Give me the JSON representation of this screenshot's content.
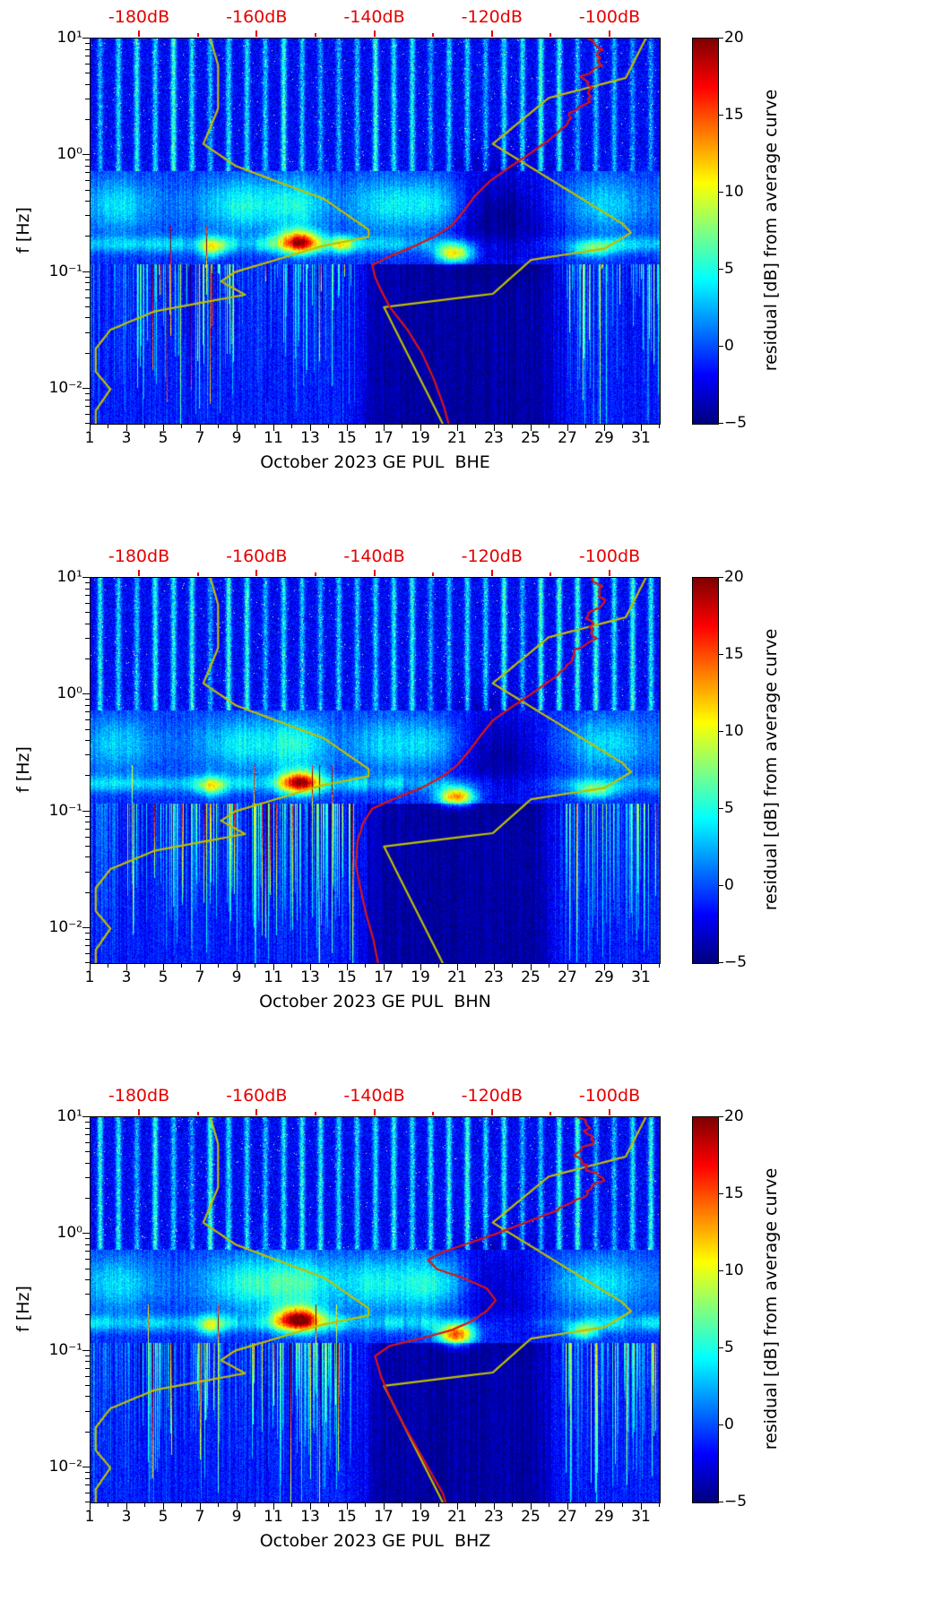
{
  "chart_data": {
    "type": "heatmap",
    "x": {
      "range_days": [
        1,
        32
      ],
      "tick_labels": [
        "1",
        "3",
        "5",
        "7",
        "9",
        "11",
        "13",
        "15",
        "17",
        "19",
        "21",
        "23",
        "25",
        "27",
        "29",
        "31"
      ]
    },
    "y": {
      "label": "f [Hz]",
      "scale": "log",
      "range_hz": [
        0.005,
        10
      ],
      "ticks": [
        {
          "f": 10,
          "label": "10¹"
        },
        {
          "f": 1,
          "label": "10⁰"
        },
        {
          "f": 0.1,
          "label": "10⁻¹"
        },
        {
          "f": 0.01,
          "label": "10⁻²"
        }
      ]
    },
    "top_axis": {
      "color": "#e60000",
      "range_db": [
        -188.4,
        -91.6
      ],
      "ticks": [
        {
          "value": -180,
          "label": "-180dB"
        },
        {
          "value": -160,
          "label": "-160dB"
        },
        {
          "value": -140,
          "label": "-140dB"
        },
        {
          "value": -120,
          "label": "-120dB"
        },
        {
          "value": -100,
          "label": "-100dB"
        }
      ]
    },
    "colorbar": {
      "label": "residual [dB] from average curve",
      "range": [
        -5,
        20
      ],
      "colormap": "jet",
      "ticks": [
        {
          "value": 20,
          "label": "20"
        },
        {
          "value": 15,
          "label": "15"
        },
        {
          "value": 10,
          "label": "10"
        },
        {
          "value": 5,
          "label": "5"
        },
        {
          "value": 0,
          "label": "0"
        },
        {
          "value": -5,
          "label": "−5"
        }
      ]
    },
    "colors": {
      "model_curve": "#bfbf00",
      "median_curve": "#dc1414",
      "heatmap_low": "#00007f",
      "heatmap_high": "#7f0000"
    },
    "model_curves": {
      "nlnm": [
        [
          10,
          -168.0
        ],
        [
          5.9,
          -166.7
        ],
        [
          2.5,
          -166.7
        ],
        [
          1.25,
          -169.2
        ],
        [
          0.81,
          -163.7
        ],
        [
          0.42,
          -148.6
        ],
        [
          0.23,
          -141.1
        ],
        [
          0.2,
          -141.1
        ],
        [
          0.167,
          -149.0
        ],
        [
          0.1,
          -163.8
        ],
        [
          0.083,
          -166.2
        ],
        [
          0.064,
          -162.1
        ],
        [
          0.046,
          -177.5
        ],
        [
          0.032,
          -185.0
        ],
        [
          0.022,
          -187.5
        ],
        [
          0.014,
          -187.5
        ],
        [
          0.0099,
          -185.0
        ],
        [
          0.0065,
          -187.5
        ],
        [
          0.005,
          -187.5
        ]
      ],
      "nhnm": [
        [
          10,
          -94.0
        ],
        [
          4.6,
          -97.4
        ],
        [
          3.1,
          -110.5
        ],
        [
          1.25,
          -120.0
        ],
        [
          0.26,
          -98.0
        ],
        [
          0.217,
          -96.5
        ],
        [
          0.159,
          -101.0
        ],
        [
          0.127,
          -113.5
        ],
        [
          0.065,
          -120.0
        ],
        [
          0.05,
          -138.5
        ],
        [
          0.005,
          -128.5
        ]
      ]
    },
    "panels": [
      {
        "channel": "BHE",
        "title": "October 2023 GE PUL  BHE",
        "median_curve": [
          [
            10,
            -103
          ],
          [
            6.5,
            -101.5
          ],
          [
            4.5,
            -104.5
          ],
          [
            3.2,
            -103
          ],
          [
            2.3,
            -106.5
          ],
          [
            1.7,
            -108
          ],
          [
            1.35,
            -110.5
          ],
          [
            1.05,
            -113.5
          ],
          [
            0.8,
            -117
          ],
          [
            0.6,
            -120.5
          ],
          [
            0.45,
            -123
          ],
          [
            0.33,
            -125
          ],
          [
            0.25,
            -127
          ],
          [
            0.2,
            -130
          ],
          [
            0.165,
            -133.5
          ],
          [
            0.14,
            -137
          ],
          [
            0.115,
            -140.5
          ],
          [
            0.09,
            -140
          ],
          [
            0.07,
            -139
          ],
          [
            0.05,
            -137.5
          ],
          [
            0.032,
            -134.5
          ],
          [
            0.02,
            -132
          ],
          [
            0.012,
            -130
          ],
          [
            0.007,
            -128.3
          ],
          [
            0.005,
            -127.5
          ]
        ],
        "texture": {
          "seed": 3,
          "taper": 0.65,
          "shallow": 1.0,
          "micro_base": 4.5,
          "cloud_base": 1.2,
          "quiet": [
            15.8,
            26.3
          ],
          "hotspots": [
            [
              7.6,
              0.5,
              -0.78,
              0.06,
              9
            ],
            [
              12.3,
              0.8,
              -0.74,
              0.07,
              16
            ],
            [
              14.7,
              0.4,
              -0.76,
              0.05,
              8
            ],
            [
              20.8,
              0.7,
              -0.84,
              0.055,
              12
            ],
            [
              28.3,
              0.8,
              -0.8,
              0.05,
              6
            ]
          ],
          "clouds": [
            [
              2.5,
              1.2,
              3.5
            ],
            [
              9.3,
              1.5,
              4.5
            ],
            [
              12.3,
              1.0,
              4.0
            ],
            [
              17.0,
              1.3,
              3.5
            ],
            [
              19.8,
              1.2,
              4.5
            ],
            [
              29.0,
              1.5,
              3.0
            ]
          ],
          "blobs": [
            [
              23.2,
              2.2,
              -0.5,
              0.27,
              -5.0
            ]
          ],
          "streak_windows": [
            [
              3.5,
              9.0,
              1.5
            ],
            [
              10.5,
              15.2,
              1.3
            ],
            [
              26.8,
              32,
              0.8
            ]
          ]
        }
      },
      {
        "channel": "BHN",
        "title": "October 2023 GE PUL  BHN",
        "median_curve": [
          [
            10,
            -103
          ],
          [
            6.5,
            -101
          ],
          [
            4.5,
            -104
          ],
          [
            3.2,
            -102.5
          ],
          [
            2.3,
            -106
          ],
          [
            1.7,
            -107.5
          ],
          [
            1.35,
            -110
          ],
          [
            1.05,
            -113
          ],
          [
            0.8,
            -116.5
          ],
          [
            0.6,
            -120
          ],
          [
            0.45,
            -122
          ],
          [
            0.33,
            -124
          ],
          [
            0.25,
            -126
          ],
          [
            0.2,
            -128.5
          ],
          [
            0.16,
            -132
          ],
          [
            0.13,
            -136.5
          ],
          [
            0.105,
            -140.5
          ],
          [
            0.08,
            -142
          ],
          [
            0.055,
            -143
          ],
          [
            0.035,
            -143.3
          ],
          [
            0.022,
            -142.5
          ],
          [
            0.013,
            -141.5
          ],
          [
            0.008,
            -140.3
          ],
          [
            0.005,
            -139.5
          ]
        ],
        "texture": {
          "seed": 7,
          "taper": 0.35,
          "shallow": 0.55,
          "micro_base": 4.5,
          "cloud_base": 1.2,
          "quiet": [
            16.0,
            26.0
          ],
          "hotspots": [
            [
              7.6,
              0.5,
              -0.78,
              0.06,
              9
            ],
            [
              12.4,
              0.8,
              -0.75,
              0.07,
              17
            ],
            [
              20.9,
              0.7,
              -0.87,
              0.055,
              15
            ],
            [
              28.5,
              0.8,
              -0.82,
              0.05,
              7
            ]
          ],
          "clouds": [
            [
              2.5,
              1.2,
              3.0
            ],
            [
              9.3,
              1.5,
              4.0
            ],
            [
              12.3,
              1.0,
              4.5
            ],
            [
              17.0,
              1.3,
              3.0
            ],
            [
              19.8,
              1.2,
              4.0
            ],
            [
              29.0,
              1.5,
              3.5
            ]
          ],
          "blobs": [
            [
              23.0,
              2.2,
              -0.48,
              0.26,
              -4.5
            ]
          ],
          "streak_windows": [
            [
              3.0,
              9.0,
              1.3
            ],
            [
              9.5,
              15.5,
              1.8
            ],
            [
              26.8,
              32,
              1.0
            ]
          ]
        }
      },
      {
        "channel": "BHZ",
        "title": "October 2023 GE PUL  BHZ",
        "median_curve": [
          [
            10,
            -105
          ],
          [
            6.5,
            -103
          ],
          [
            4.5,
            -106
          ],
          [
            3.0,
            -101.5
          ],
          [
            2.2,
            -104
          ],
          [
            1.6,
            -109
          ],
          [
            1.25,
            -114.5
          ],
          [
            1.0,
            -119.5
          ],
          [
            0.82,
            -124.5
          ],
          [
            0.7,
            -128.5
          ],
          [
            0.6,
            -131
          ],
          [
            0.5,
            -129.5
          ],
          [
            0.42,
            -125
          ],
          [
            0.34,
            -121
          ],
          [
            0.27,
            -119.5
          ],
          [
            0.22,
            -121
          ],
          [
            0.18,
            -123.5
          ],
          [
            0.15,
            -127
          ],
          [
            0.13,
            -131.5
          ],
          [
            0.11,
            -137.5
          ],
          [
            0.09,
            -140
          ],
          [
            0.06,
            -139
          ],
          [
            0.04,
            -137.5
          ],
          [
            0.025,
            -135.5
          ],
          [
            0.015,
            -133
          ],
          [
            0.009,
            -130.5
          ],
          [
            0.006,
            -128.5
          ],
          [
            0.005,
            -128
          ]
        ],
        "texture": {
          "seed": 11,
          "taper": 0.45,
          "shallow": 0.75,
          "micro_base": 5.0,
          "cloud_base": 1.5,
          "quiet": [
            16.0,
            26.0
          ],
          "hotspots": [
            [
              7.5,
              0.45,
              -0.78,
              0.06,
              8
            ],
            [
              12.3,
              0.9,
              -0.73,
              0.075,
              18
            ],
            [
              20.9,
              0.7,
              -0.86,
              0.06,
              16
            ],
            [
              27.8,
              0.6,
              -0.83,
              0.05,
              8
            ]
          ],
          "clouds": [
            [
              2.5,
              1.2,
              3.0
            ],
            [
              9.5,
              1.5,
              4.5
            ],
            [
              12.3,
              1.2,
              5.0
            ],
            [
              16.5,
              1.5,
              4.0
            ],
            [
              19.8,
              1.2,
              5.0
            ],
            [
              28.5,
              1.5,
              3.5
            ]
          ],
          "blobs": [
            [
              23.0,
              2.0,
              -0.45,
              0.25,
              -4.0
            ]
          ],
          "streak_windows": [
            [
              3.5,
              5.5,
              1.9
            ],
            [
              6.8,
              8.2,
              1.4
            ],
            [
              9.5,
              15.5,
              1.5
            ],
            [
              26.8,
              32,
              1.0
            ]
          ]
        }
      }
    ]
  }
}
